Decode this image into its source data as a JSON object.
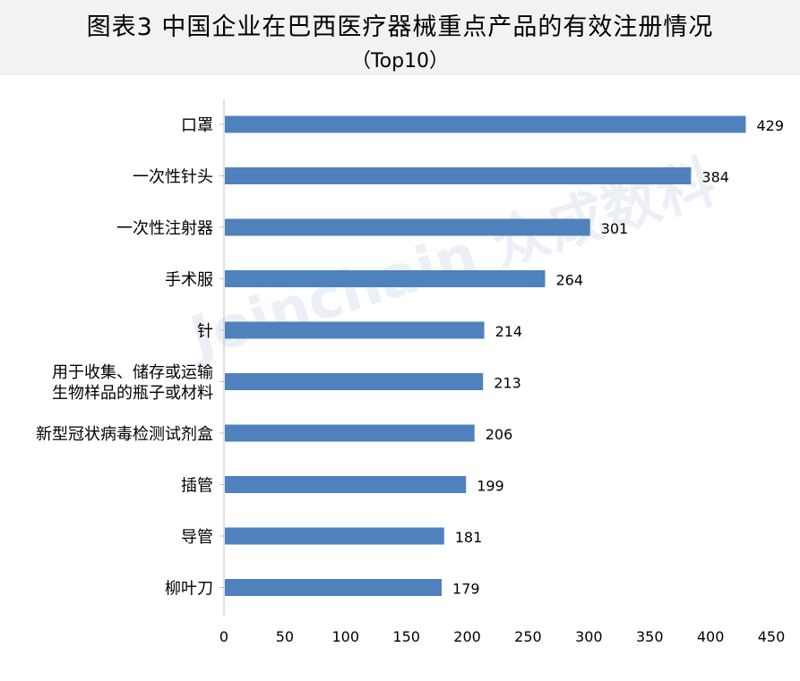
{
  "title": {
    "line1": "图表3   中国企业在巴西医疗器械重点产品的有效注册情况",
    "line2": "（Top10）"
  },
  "watermark": "Joinchain 众成数科",
  "colors": {
    "bar": "#4f81bd",
    "axis": "#bfbfbf",
    "title_band": "#f2f2f2"
  },
  "chart_data": {
    "type": "bar",
    "orientation": "horizontal",
    "title": "图表3 中国企业在巴西医疗器械重点产品的有效注册情况（Top10）",
    "categories": [
      [
        "口罩"
      ],
      [
        "一次性针头"
      ],
      [
        "一次性注射器"
      ],
      [
        "手术服"
      ],
      [
        "针"
      ],
      [
        "用于收集、储存或运输",
        "生物样品的瓶子或材料"
      ],
      [
        "新型冠状病毒检测试剂盒"
      ],
      [
        "插管"
      ],
      [
        "导管"
      ],
      [
        "柳叶刀"
      ]
    ],
    "values": [
      429,
      384,
      301,
      264,
      214,
      213,
      206,
      199,
      181,
      179
    ],
    "xlim": [
      0,
      450
    ],
    "xticks": [
      0,
      50,
      100,
      150,
      200,
      250,
      300,
      350,
      400,
      450
    ],
    "grid": false,
    "legend": "none",
    "data_labels": true
  }
}
